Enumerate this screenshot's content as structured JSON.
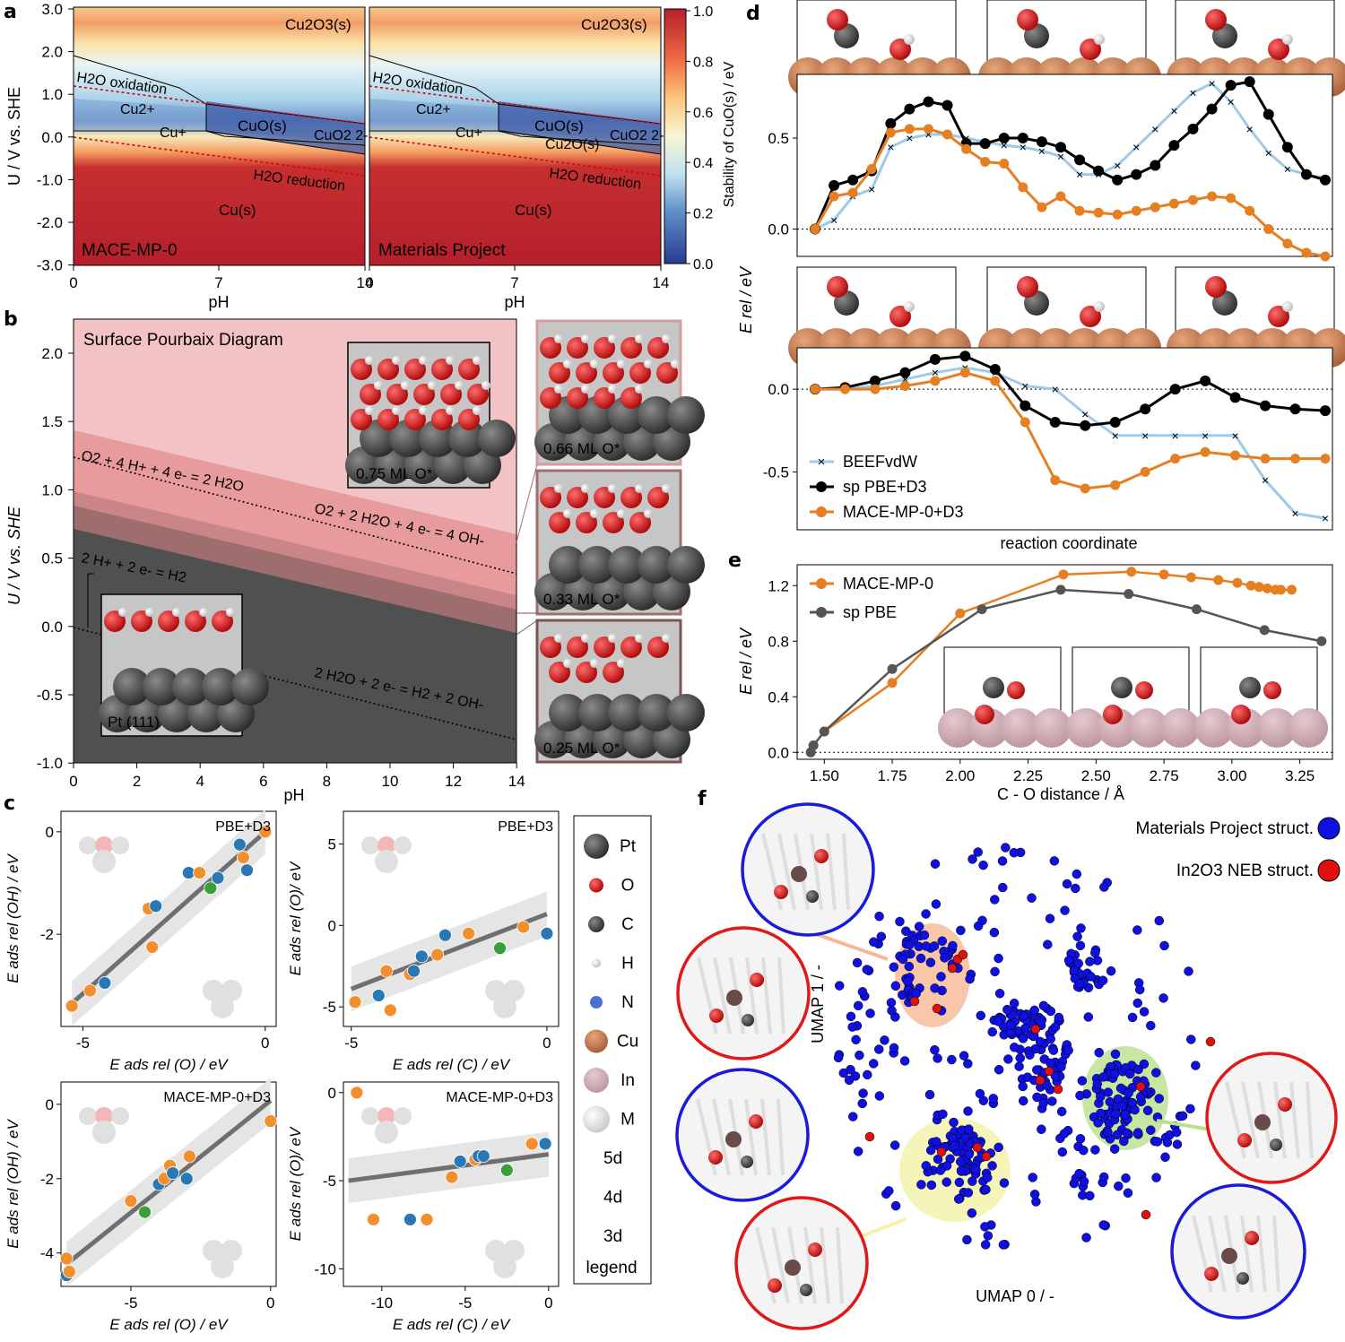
{
  "panels": {
    "a": {
      "letter": "a",
      "ylabel": "U / V vs. SHE",
      "xlabel": "pH",
      "yticks": [
        "3.0",
        "2.0",
        "1.0",
        "0.0",
        "-1.0",
        "-2.0",
        "-3.0"
      ],
      "xticks_left": [
        "0",
        "7",
        "14"
      ],
      "xticks_right": [
        "0",
        "7",
        "14"
      ],
      "colorbar_label": "Stability of CuO(s) / eV",
      "colorbar_ticks": [
        "1.0",
        "0.8",
        "0.6",
        "0.4",
        "0.2",
        "0.0"
      ],
      "left_label": "MACE-MP-0",
      "right_label": "Materials Project",
      "regions_left": [
        "Cu2O3(s)",
        "H2O oxidation",
        "Cu2+",
        "Cu+",
        "CuO(s)",
        "CuO2 2-",
        "H2O reduction",
        "Cu(s)"
      ],
      "regions_right": [
        "Cu2O3(s)",
        "H2O oxidation",
        "Cu2+",
        "Cu+",
        "CuO(s)",
        "Cu2O(s)",
        "CuO2 2-",
        "H2O reduction",
        "Cu(s)"
      ]
    },
    "b": {
      "letter": "b",
      "title": "Surface Pourbaix Diagram",
      "ylabel": "U / V vs. SHE",
      "xlabel": "pH",
      "yticks": [
        "2.0",
        "1.5",
        "1.0",
        "0.5",
        "0.0",
        "-0.5",
        "-1.0"
      ],
      "xticks": [
        "0",
        "2",
        "4",
        "6",
        "8",
        "10",
        "12",
        "14"
      ],
      "eq1": "O2 + 4 H+ + 4 e- = 2 H2O",
      "eq2": "O2 + 2 H2O + 4 e- = 4 OH-",
      "eq3": "2 H+ + 2 e- = H2",
      "eq4": "2 H2O + 2 e- = H2 + 2 OH-",
      "inset_main": "0.75 ML O*",
      "inset_pt": "Pt (111)",
      "inset_066": "0.66 ML O*",
      "inset_033": "0.33 ML O*",
      "inset_025": "0.25 ML O*"
    },
    "c": {
      "letter": "c",
      "plots": [
        {
          "tag": "PBE+D3",
          "ylabel": "E ads rel (OH) / eV",
          "xlabel": "E ads rel (O) / eV",
          "xticks": [
            "-5",
            "0"
          ],
          "yticks": [
            "0",
            "-2"
          ]
        },
        {
          "tag": "PBE+D3",
          "ylabel": "E ads rel (O)/ eV",
          "xlabel": "E ads rel (C) / eV",
          "xticks": [
            "-5",
            "0"
          ],
          "yticks": [
            "5",
            "0",
            "-5"
          ]
        },
        {
          "tag": "MACE-MP-0+D3",
          "ylabel": "E ads rel (OH) / eV",
          "xlabel": "E ads rel (O) / eV",
          "xticks": [
            "-5",
            "0"
          ],
          "yticks": [
            "0",
            "-2",
            "-4"
          ]
        },
        {
          "tag": "MACE-MP-0+D3",
          "ylabel": "E ads rel (O)/ eV",
          "xlabel": "E ads rel (C) / eV",
          "xticks": [
            "-10",
            "-5",
            "0"
          ],
          "yticks": [
            "0",
            "-5",
            "-10"
          ]
        }
      ],
      "legend": {
        "items": [
          "Pt",
          "O",
          "C",
          "H",
          "N",
          "Cu",
          "In",
          "M",
          "5d",
          "4d",
          "3d"
        ],
        "title": "legend"
      }
    },
    "d": {
      "letter": "d",
      "ylabel_main": "E rel / eV",
      "ylabel_top_axis": "E rel",
      "xlabel": "reaction coordinate",
      "top_yticks": [
        "0.5",
        "0.0"
      ],
      "bottom_yticks": [
        "0.0",
        "-0.5"
      ],
      "legend": [
        "BEEFvdW",
        "sp PBE+D3",
        "MACE-MP-0+D3"
      ]
    },
    "e": {
      "letter": "e",
      "ylabel": "E rel / eV",
      "xlabel": "C - O distance / Å",
      "yticks": [
        "1.2",
        "0.8",
        "0.4",
        "0.0"
      ],
      "xticks": [
        "1.50",
        "1.75",
        "2.00",
        "2.25",
        "2.50",
        "2.75",
        "3.00",
        "3.25"
      ],
      "legend": [
        "MACE-MP-0",
        "sp PBE"
      ]
    },
    "f": {
      "letter": "f",
      "xlabel": "UMAP 0 / -",
      "ylabel": "UMAP 1 / -",
      "legend": [
        "Materials Project struct.",
        "In2O3 NEB struct."
      ]
    }
  },
  "colors": {
    "orange": "#e67e22",
    "black": "#000000",
    "lightblue": "#9ec9e8",
    "blue5d": "#2878b5",
    "orange4d": "#f28e2b",
    "green3d": "#3a9e3a",
    "grayline": "#6f6f6f",
    "umap_blue": "#1010e0",
    "umap_red": "#e01010"
  },
  "chart_data": [
    {
      "panel": "d-top",
      "type": "line",
      "ylim": [
        -0.15,
        0.85
      ],
      "series": [
        {
          "name": "BEEFvdW",
          "values": [
            0.0,
            0.05,
            0.18,
            0.22,
            0.45,
            0.5,
            0.52,
            0.52,
            0.5,
            0.48,
            0.46,
            0.45,
            0.43,
            0.4,
            0.3,
            0.3,
            0.35,
            0.45,
            0.55,
            0.65,
            0.75,
            0.8,
            0.7,
            0.55,
            0.42,
            0.33,
            0.3,
            0.28
          ]
        },
        {
          "name": "sp PBE+D3",
          "values": [
            0.0,
            0.24,
            0.27,
            0.32,
            0.58,
            0.66,
            0.7,
            0.68,
            0.47,
            0.47,
            0.5,
            0.5,
            0.48,
            0.45,
            0.38,
            0.32,
            0.27,
            0.3,
            0.35,
            0.46,
            0.55,
            0.66,
            0.79,
            0.81,
            0.63,
            0.45,
            0.3,
            0.27
          ]
        },
        {
          "name": "MACE-MP-0+D3",
          "values": [
            0.0,
            0.18,
            0.2,
            0.33,
            0.53,
            0.55,
            0.55,
            0.52,
            0.44,
            0.37,
            0.36,
            0.23,
            0.12,
            0.18,
            0.1,
            0.09,
            0.08,
            0.1,
            0.12,
            0.14,
            0.16,
            0.18,
            0.17,
            0.1,
            0.0,
            -0.08,
            -0.13,
            -0.15
          ]
        }
      ]
    },
    {
      "panel": "d-bottom",
      "type": "line",
      "ylim": [
        -0.85,
        0.25
      ],
      "series": [
        {
          "name": "BEEFvdW",
          "values": [
            0.0,
            0.0,
            0.02,
            0.06,
            0.1,
            0.13,
            0.1,
            0.02,
            0.0,
            -0.15,
            -0.28,
            -0.28,
            -0.28,
            -0.28,
            -0.28,
            -0.55,
            -0.75,
            -0.78
          ]
        },
        {
          "name": "sp PBE+D3",
          "values": [
            0.0,
            0.01,
            0.05,
            0.1,
            0.18,
            0.2,
            0.12,
            -0.1,
            -0.2,
            -0.22,
            -0.2,
            -0.12,
            0.0,
            0.05,
            -0.05,
            -0.1,
            -0.12,
            -0.13
          ]
        },
        {
          "name": "MACE-MP-0+D3",
          "values": [
            0.0,
            0.0,
            0.0,
            0.02,
            0.05,
            0.1,
            0.05,
            -0.2,
            -0.55,
            -0.6,
            -0.58,
            -0.5,
            -0.42,
            -0.38,
            -0.4,
            -0.42,
            -0.42,
            -0.42
          ]
        }
      ]
    },
    {
      "panel": "e",
      "type": "line",
      "xlim": [
        1.4,
        3.37
      ],
      "ylim": [
        -0.05,
        1.35
      ],
      "series": [
        {
          "name": "MACE-MP-0",
          "x": [
            1.45,
            1.46,
            1.5,
            1.75,
            2.0,
            2.38,
            2.63,
            2.75,
            2.85,
            2.95,
            3.02,
            3.07,
            3.1,
            3.13,
            3.16,
            3.18,
            3.22
          ],
          "y": [
            0.0,
            0.05,
            0.15,
            0.5,
            1.0,
            1.28,
            1.3,
            1.28,
            1.26,
            1.24,
            1.22,
            1.2,
            1.19,
            1.18,
            1.17,
            1.17,
            1.17
          ]
        },
        {
          "name": "sp PBE",
          "x": [
            1.45,
            1.46,
            1.5,
            1.75,
            2.08,
            2.37,
            2.62,
            2.87,
            3.12,
            3.33
          ],
          "y": [
            0.0,
            0.05,
            0.15,
            0.6,
            1.03,
            1.17,
            1.14,
            1.03,
            0.88,
            0.8
          ]
        }
      ]
    }
  ]
}
